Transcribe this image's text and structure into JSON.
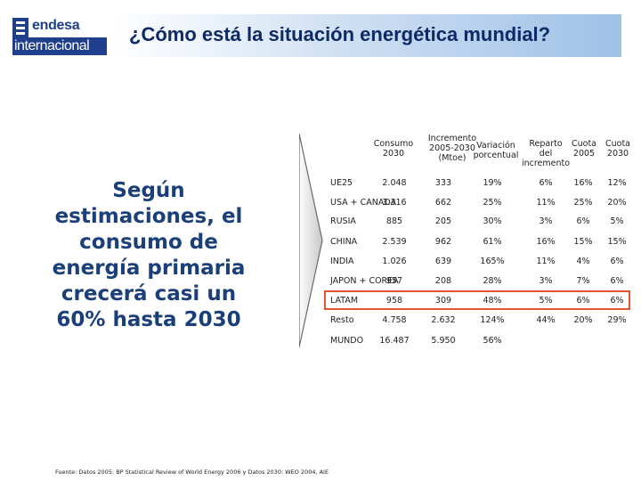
{
  "header": {
    "logo_top": "endesa",
    "logo_bottom": "internacional",
    "title": "¿Cómo está la situación energética mundial?"
  },
  "statement": {
    "lines": [
      "Según",
      "estimaciones, el",
      "consumo de",
      "energía primaria",
      "crecerá casi un",
      "60% hasta 2030"
    ]
  },
  "table": {
    "headers": {
      "consumo": [
        "Consumo",
        "2030"
      ],
      "incremento": [
        "Incremento",
        "2005-2030",
        "(Mtoe)"
      ],
      "variacion": [
        "Variación",
        "porcentual"
      ],
      "reparto": [
        "Reparto",
        "del",
        "incremento"
      ],
      "cuota2005": [
        "Cuota",
        "2005"
      ],
      "cuota2030": [
        "Cuota",
        "2030"
      ]
    },
    "rows": [
      {
        "region": "UE25",
        "consumo": "2.048",
        "incremento": "333",
        "variacion": "19%",
        "reparto": "6%",
        "cuota2005": "16%",
        "cuota2030": "12%"
      },
      {
        "region": "USA + CANADA",
        "consumo": "3.316",
        "incremento": "662",
        "variacion": "25%",
        "reparto": "11%",
        "cuota2005": "25%",
        "cuota2030": "20%"
      },
      {
        "region": "RUSIA",
        "consumo": "885",
        "incremento": "205",
        "variacion": "30%",
        "reparto": "3%",
        "cuota2005": "6%",
        "cuota2030": "5%"
      },
      {
        "region": "CHINA",
        "consumo": "2.539",
        "incremento": "962",
        "variacion": "61%",
        "reparto": "16%",
        "cuota2005": "15%",
        "cuota2030": "15%"
      },
      {
        "region": "INDIA",
        "consumo": "1.026",
        "incremento": "639",
        "variacion": "165%",
        "reparto": "11%",
        "cuota2005": "4%",
        "cuota2030": "6%"
      },
      {
        "region": "JAPON + COREA",
        "consumo": "957",
        "incremento": "208",
        "variacion": "28%",
        "reparto": "3%",
        "cuota2005": "7%",
        "cuota2030": "6%"
      },
      {
        "region": "LATAM",
        "consumo": "958",
        "incremento": "309",
        "variacion": "48%",
        "reparto": "5%",
        "cuota2005": "6%",
        "cuota2030": "6%"
      },
      {
        "region": "Resto",
        "consumo": "4.758",
        "incremento": "2.632",
        "variacion": "124%",
        "reparto": "44%",
        "cuota2005": "20%",
        "cuota2030": "29%"
      },
      {
        "region": "MUNDO",
        "consumo": "16.487",
        "incremento": "5.950",
        "variacion": "56%",
        "reparto": "",
        "cuota2005": "",
        "cuota2030": ""
      }
    ],
    "highlight_color": "#e8542d"
  },
  "source": "Fuente: Datos 2005: BP Statistical Review of World Energy 2006 y Datos 2030: WEO 2004, AIE"
}
